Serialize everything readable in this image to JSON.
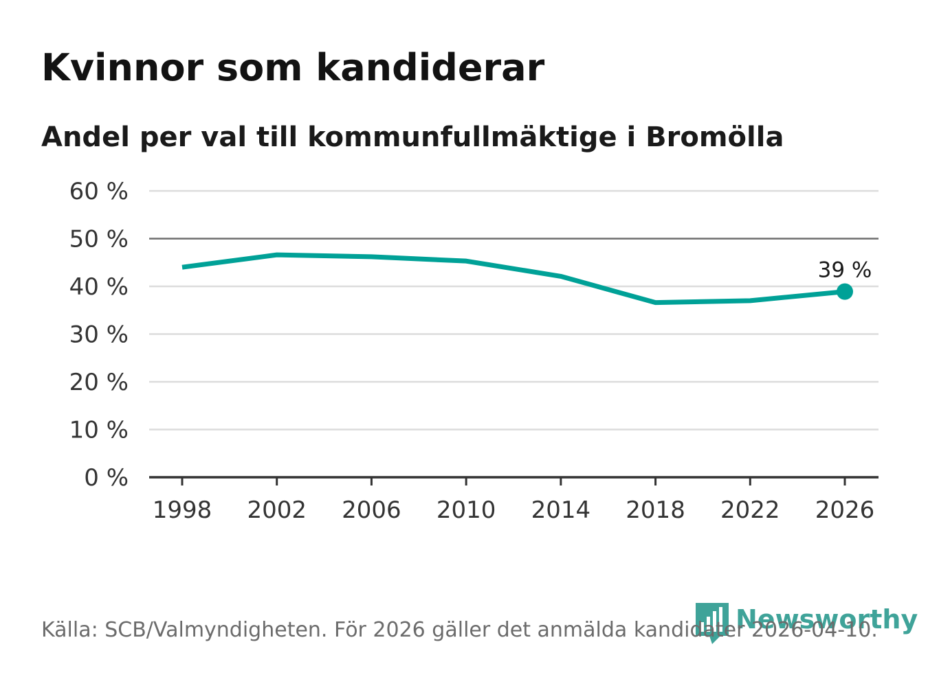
{
  "colors": {
    "line": "#00a197",
    "grid": "#dcdcdc",
    "reference_line": "#6e6e6e",
    "baseline": "#333333",
    "title": "#121212",
    "source": "#6b6b6b",
    "brand": "#3fa399"
  },
  "logo": {
    "name": "Newsworthy",
    "icon": "bar-chart-pin-icon"
  },
  "chart_data": {
    "type": "line",
    "title": "Kvinnor som kandiderar",
    "subtitle": "Andel per val till kommunfullmäktige i Bromölla",
    "x": [
      1998,
      2002,
      2006,
      2010,
      2014,
      2018,
      2022,
      2026
    ],
    "series": [
      {
        "values": [
          44.0,
          46.6,
          46.2,
          45.3,
          42.1,
          36.6,
          37.0,
          38.9
        ],
        "end_label": "39 %"
      }
    ],
    "x_ticks": [
      "1998",
      "2002",
      "2006",
      "2010",
      "2014",
      "2018",
      "2022",
      "2026"
    ],
    "y_ticks": [
      "0 %",
      "10 %",
      "20 %",
      "30 %",
      "40 %",
      "50 %",
      "60 %"
    ],
    "ylim": [
      0,
      60
    ],
    "y_tick_step": 10,
    "reference_line_y": 50,
    "grid": true,
    "legend": "none",
    "source": "Källa: SCB/Valmyndigheten. För 2026 gäller det anmälda kandidater 2026-04-10."
  }
}
